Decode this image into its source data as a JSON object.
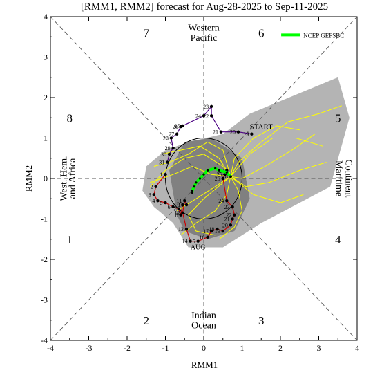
{
  "chart_data": {
    "type": "line",
    "title": "[RMM1, RMM2] forecast for Aug-28-2025 to Sep-11-2025",
    "xlabel": "RMM1",
    "ylabel": "RMM2",
    "xlim": [
      -4,
      4
    ],
    "ylim": [
      -4,
      4
    ],
    "xticks": [
      "-4",
      "-3",
      "-2",
      "-1",
      "0",
      "1",
      "2",
      "3",
      "4"
    ],
    "yticks": [
      "-4",
      "-3",
      "-2",
      "-1",
      "0",
      "1",
      "2",
      "3",
      "4"
    ],
    "phase_numbers": [
      {
        "label": "1",
        "x": -3.5,
        "y": -1.5
      },
      {
        "label": "2",
        "x": -1.5,
        "y": -3.5
      },
      {
        "label": "3",
        "x": 1.5,
        "y": -3.5
      },
      {
        "label": "4",
        "x": 3.5,
        "y": -1.5
      },
      {
        "label": "5",
        "x": 3.5,
        "y": 1.5
      },
      {
        "label": "6",
        "x": 1.5,
        "y": 3.6
      },
      {
        "label": "7",
        "x": -1.5,
        "y": 3.6
      },
      {
        "label": "8",
        "x": -3.5,
        "y": 1.5
      }
    ],
    "region_labels": {
      "top": [
        "Western",
        "Pacific"
      ],
      "bottom": [
        "Indian",
        "Ocean"
      ],
      "left": [
        "West. Hem.",
        "and Africa"
      ],
      "right": [
        "Maritime",
        "Continent"
      ]
    },
    "legend": {
      "label": "NCEP GEFSBC",
      "color": "#00ff00",
      "placement": "top-right"
    },
    "annotations": {
      "start": "START",
      "month": "AUG"
    },
    "colors": {
      "outer_spread": "#b4b4b4",
      "inner_spread": "#808080",
      "members": "#ffff00",
      "forecast": "#00ff00",
      "obs_july": "#4b0082",
      "obs_aug": "#cc0000",
      "start_label": "#6a0dad"
    },
    "spread_outer": [
      [
        -1.6,
        -0.3
      ],
      [
        -1.5,
        0.3
      ],
      [
        -1.0,
        0.7
      ],
      [
        -0.4,
        0.9
      ],
      [
        0.5,
        1.1
      ],
      [
        1.2,
        1.6
      ],
      [
        3.5,
        2.5
      ],
      [
        3.8,
        1.5
      ],
      [
        3.3,
        -0.2
      ],
      [
        1.5,
        -1.1
      ],
      [
        0.5,
        -1.7
      ],
      [
        -0.4,
        -1.7
      ],
      [
        -0.8,
        -1.1
      ],
      [
        -1.3,
        -0.7
      ]
    ],
    "spread_inner": [
      [
        -0.7,
        -0.9
      ],
      [
        -0.9,
        0.2
      ],
      [
        -0.5,
        0.9
      ],
      [
        0.2,
        1.0
      ],
      [
        1.0,
        0.5
      ],
      [
        1.2,
        -0.5
      ],
      [
        0.8,
        -1.3
      ],
      [
        0.1,
        -1.5
      ],
      [
        -0.5,
        -1.3
      ]
    ],
    "observed_july": {
      "days": [
        "19",
        "20",
        "21",
        "22",
        "23",
        "24",
        "25",
        "26",
        "27",
        "28",
        "29",
        "30",
        "31"
      ],
      "x": [
        1.25,
        0.9,
        0.45,
        0.2,
        0.2,
        0.0,
        -0.55,
        -0.6,
        -0.7,
        -0.85,
        -0.8,
        -0.9,
        -0.95
      ],
      "y": [
        1.1,
        1.15,
        1.15,
        1.55,
        1.78,
        1.55,
        1.3,
        1.28,
        1.1,
        1.0,
        0.75,
        0.6,
        0.4
      ]
    },
    "observed_august": {
      "days": [
        "1",
        "2",
        "3",
        "4",
        "5",
        "6",
        "7",
        "8",
        "9",
        "10",
        "11",
        "12",
        "13",
        "14",
        "15",
        "16",
        "17",
        "18",
        "19",
        "20",
        "21",
        "22",
        "23",
        "24",
        "25",
        "26",
        "27",
        "28"
      ],
      "x": [
        -1.0,
        -1.25,
        -1.3,
        -1.2,
        -1.0,
        -0.8,
        -0.65,
        -0.6,
        -0.55,
        -0.45,
        -0.5,
        -0.55,
        -0.45,
        -0.35,
        -0.15,
        0.1,
        0.2,
        0.35,
        0.5,
        0.7,
        0.75,
        0.8,
        0.75,
        0.6,
        0.5,
        0.55,
        0.6,
        0.7
      ],
      "y": [
        0.1,
        -0.2,
        -0.4,
        -0.55,
        -0.6,
        -0.7,
        -0.75,
        -0.9,
        -0.65,
        -0.65,
        -0.55,
        -0.85,
        -1.25,
        -1.55,
        -1.55,
        -1.45,
        -1.3,
        -1.25,
        -1.3,
        -1.15,
        -1.0,
        -0.9,
        -0.7,
        -0.55,
        0.0,
        0.1,
        0.2,
        0.05
      ]
    },
    "forecast_gefsbc": {
      "x": [
        0.7,
        0.6,
        0.4,
        0.3,
        0.1,
        0.0,
        -0.1,
        -0.2,
        -0.25,
        -0.3,
        -0.3
      ],
      "y": [
        0.05,
        0.15,
        0.2,
        0.25,
        0.2,
        0.1,
        0.0,
        -0.1,
        -0.2,
        -0.3,
        -0.35
      ]
    },
    "ensemble_members": [
      {
        "x": [
          0.7,
          0.9,
          1.5,
          2.2,
          3.0,
          3.6
        ],
        "y": [
          0.05,
          0.4,
          0.9,
          1.4,
          1.6,
          1.8
        ]
      },
      {
        "x": [
          0.7,
          1.0,
          1.6,
          2.3,
          2.9
        ],
        "y": [
          0.05,
          0.0,
          0.3,
          0.7,
          1.1
        ]
      },
      {
        "x": [
          0.7,
          1.1,
          1.7,
          2.5,
          3.2
        ],
        "y": [
          0.05,
          -0.2,
          -0.1,
          0.2,
          0.4
        ]
      },
      {
        "x": [
          0.7,
          0.8,
          1.3,
          1.9,
          2.5
        ],
        "y": [
          0.05,
          0.5,
          1.0,
          1.3,
          1.2
        ]
      },
      {
        "x": [
          0.7,
          0.5,
          0.0,
          -0.5,
          -1.0,
          -1.4
        ],
        "y": [
          0.05,
          0.3,
          0.6,
          0.5,
          0.2,
          -0.2
        ]
      },
      {
        "x": [
          0.7,
          0.4,
          -0.1,
          -0.6,
          -1.1
        ],
        "y": [
          0.05,
          0.5,
          0.8,
          0.7,
          0.6
        ]
      },
      {
        "x": [
          0.7,
          0.6,
          0.3,
          -0.2,
          -0.6
        ],
        "y": [
          0.05,
          -0.4,
          -0.8,
          -1.1,
          -1.4
        ]
      },
      {
        "x": [
          0.7,
          0.9,
          1.0,
          0.8,
          0.4
        ],
        "y": [
          0.05,
          -0.3,
          -0.8,
          -1.2,
          -1.5
        ]
      },
      {
        "x": [
          0.7,
          0.2,
          -0.3,
          -0.8,
          -1.4
        ],
        "y": [
          0.05,
          0.1,
          0.3,
          0.1,
          -0.1
        ]
      },
      {
        "x": [
          0.7,
          1.2,
          1.8,
          2.4,
          3.1
        ],
        "y": [
          0.05,
          0.6,
          1.0,
          1.0,
          0.8
        ]
      },
      {
        "x": [
          0.7,
          0.3,
          -0.2,
          -0.7
        ],
        "y": [
          0.05,
          -0.2,
          -0.5,
          -0.8
        ]
      },
      {
        "x": [
          0.7,
          1.3,
          2.0,
          2.6
        ],
        "y": [
          0.05,
          -0.4,
          -0.6,
          -0.4
        ]
      },
      {
        "x": [
          0.7,
          0.0,
          -0.4,
          -0.2,
          0.3
        ],
        "y": [
          0.05,
          -0.5,
          -0.9,
          -1.3,
          -1.4
        ]
      },
      {
        "x": [
          0.7,
          0.5,
          0.1,
          -0.4,
          -0.9,
          -1.3
        ],
        "y": [
          0.05,
          0.7,
          0.9,
          0.6,
          0.4,
          0.3
        ]
      }
    ]
  }
}
